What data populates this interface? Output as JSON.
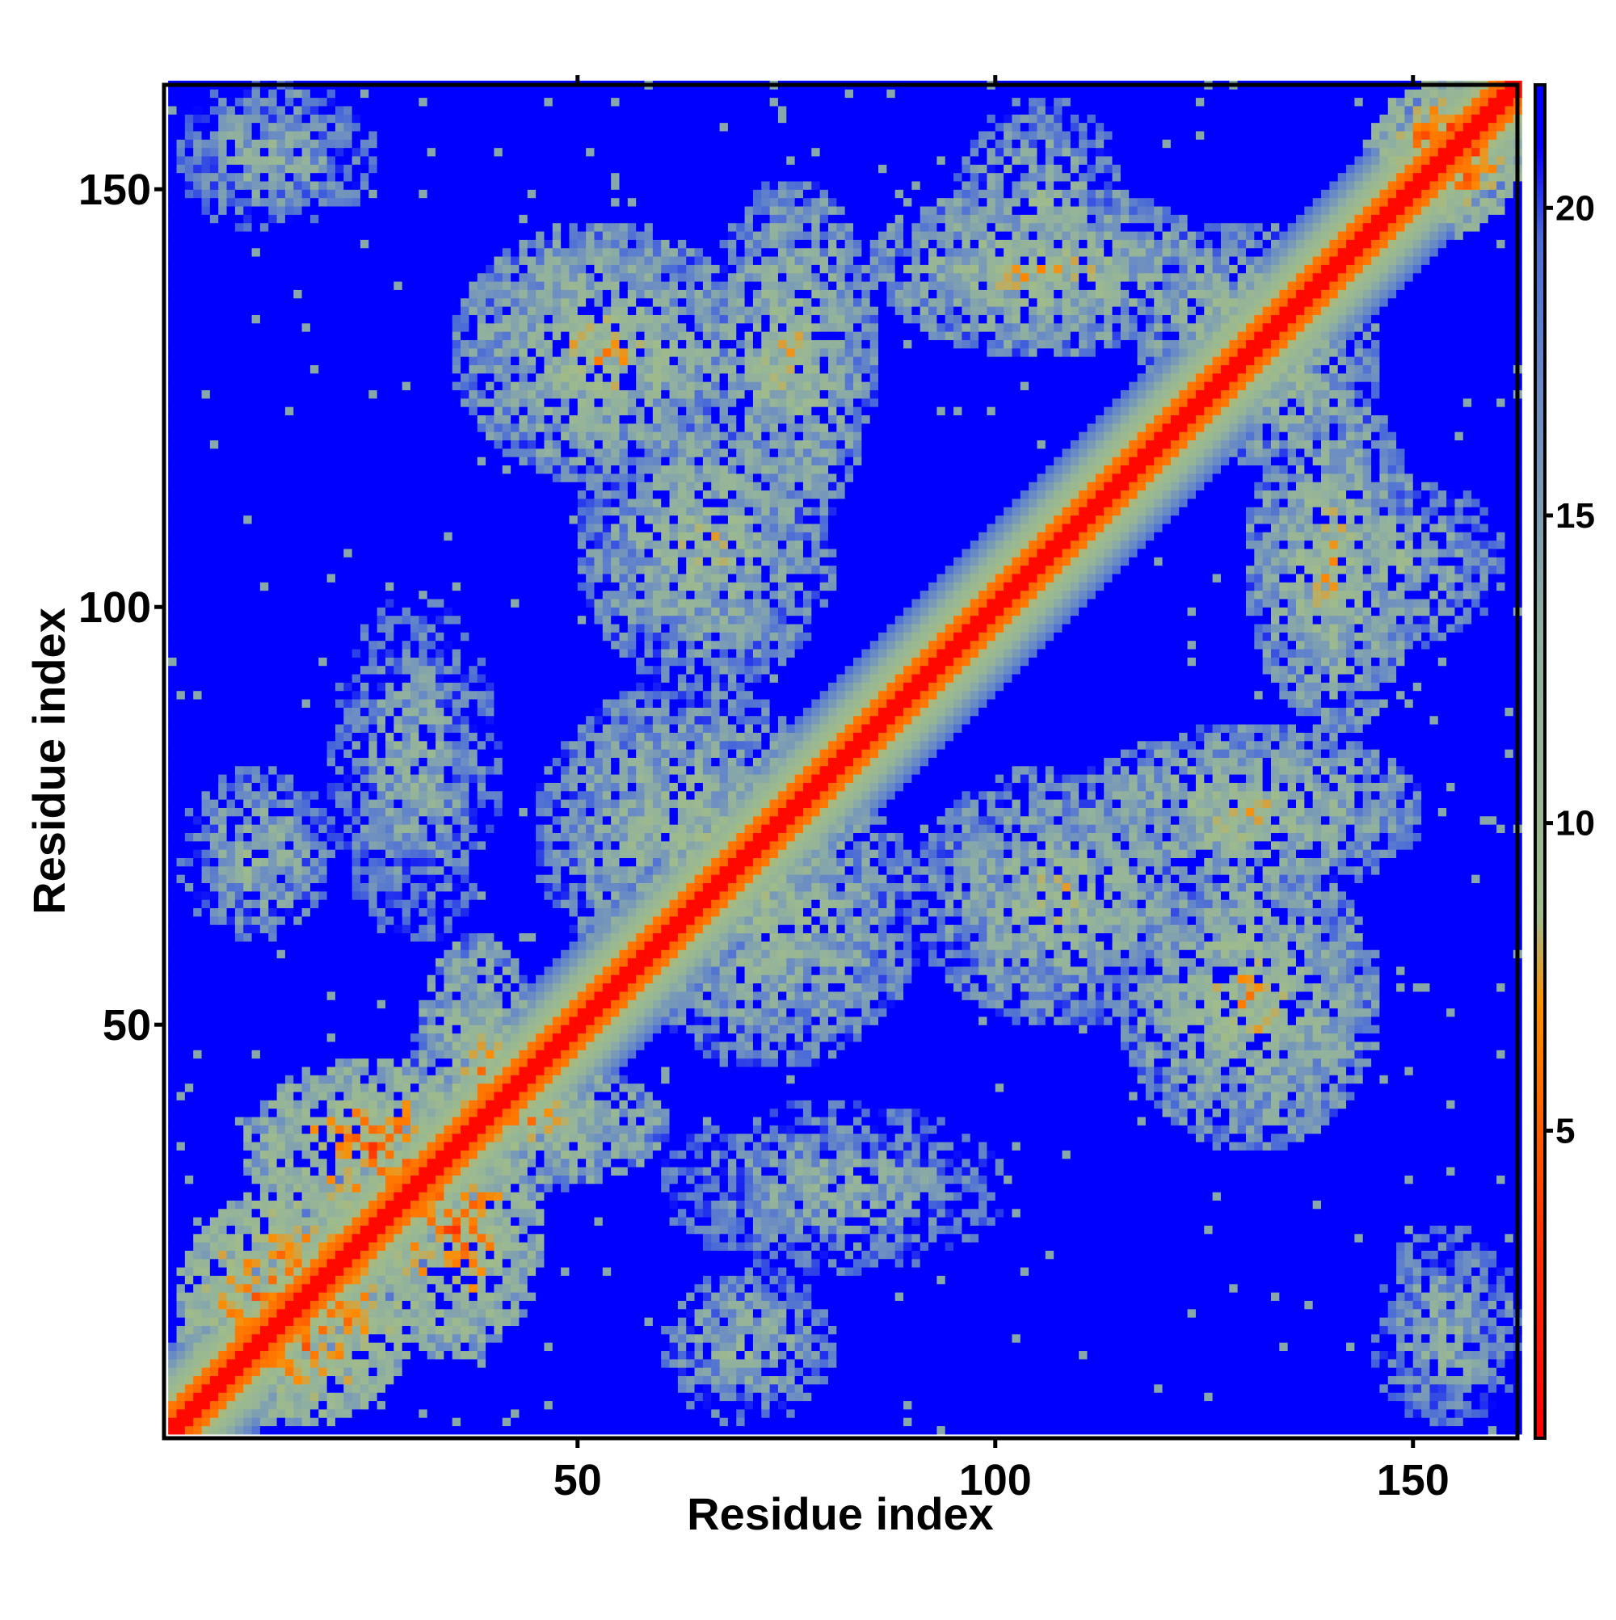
{
  "chart_data": {
    "type": "heatmap",
    "title": "",
    "xlabel": "Residue index",
    "ylabel": "Residue index",
    "n_residues": 162,
    "xlim": [
      1,
      162
    ],
    "ylim": [
      1,
      162
    ],
    "x_ticks": [
      50,
      100,
      150
    ],
    "x_tick_labels": [
      "50",
      "100",
      "150"
    ],
    "y_ticks": [
      50,
      100,
      150
    ],
    "y_tick_labels": [
      "50",
      "100",
      "150"
    ],
    "colorbar": {
      "range": [
        0,
        22
      ],
      "ticks": [
        5,
        10,
        15,
        20
      ],
      "tick_labels": [
        "5",
        "10",
        "15",
        "20"
      ],
      "stops": [
        {
          "value": 0,
          "color": "#ff0000"
        },
        {
          "value": 3.5,
          "color": "#ff3a00"
        },
        {
          "value": 7,
          "color": "#ff8c00"
        },
        {
          "value": 8.5,
          "color": "#a0bc8a"
        },
        {
          "value": 13,
          "color": "#90b0a0"
        },
        {
          "value": 17,
          "color": "#6a8cc4"
        },
        {
          "value": 19.5,
          "color": "#4a6ad8"
        },
        {
          "value": 21,
          "color": "#0000ff"
        },
        {
          "value": 22,
          "color": "#0000ff"
        }
      ]
    },
    "value_description": "symmetric residue-residue distance matrix; 0 on the diagonal, saturating at 22",
    "contact_regions": [
      {
        "i": [
          2,
          30
        ],
        "j": [
          2,
          30
        ],
        "level": 6
      },
      {
        "i": [
          25,
          45
        ],
        "j": [
          10,
          40
        ],
        "level": 7
      },
      {
        "i": [
          30,
          45
        ],
        "j": [
          25,
          60
        ],
        "level": 9
      },
      {
        "i": [
          45,
          80
        ],
        "j": [
          55,
          90
        ],
        "level": 11
      },
      {
        "i": [
          60,
          80
        ],
        "j": [
          2,
          20
        ],
        "level": 12
      },
      {
        "i": [
          90,
          125
        ],
        "j": [
          50,
          80
        ],
        "level": 11
      },
      {
        "i": [
          65,
          85
        ],
        "j": [
          110,
          150
        ],
        "level": 10
      },
      {
        "i": [
          115,
          145
        ],
        "j": [
          35,
          70
        ],
        "level": 10
      },
      {
        "i": [
          130,
          150
        ],
        "j": [
          85,
          125
        ],
        "level": 10
      },
      {
        "i": [
          150,
          162
        ],
        "j": [
          145,
          162
        ],
        "level": 6
      },
      {
        "i": [
          2,
          20
        ],
        "j": [
          145,
          162
        ],
        "level": 13
      },
      {
        "i": [
          145,
          162
        ],
        "j": [
          2,
          25
        ],
        "level": 13
      },
      {
        "i": [
          95,
          115
        ],
        "j": [
          135,
          160
        ],
        "level": 12
      },
      {
        "i": [
          20,
          40
        ],
        "j": [
          60,
          100
        ],
        "level": 13
      },
      {
        "i": [
          115,
          140
        ],
        "j": [
          125,
          145
        ],
        "level": 11
      }
    ],
    "grid": false,
    "legend": "colorbar right"
  }
}
